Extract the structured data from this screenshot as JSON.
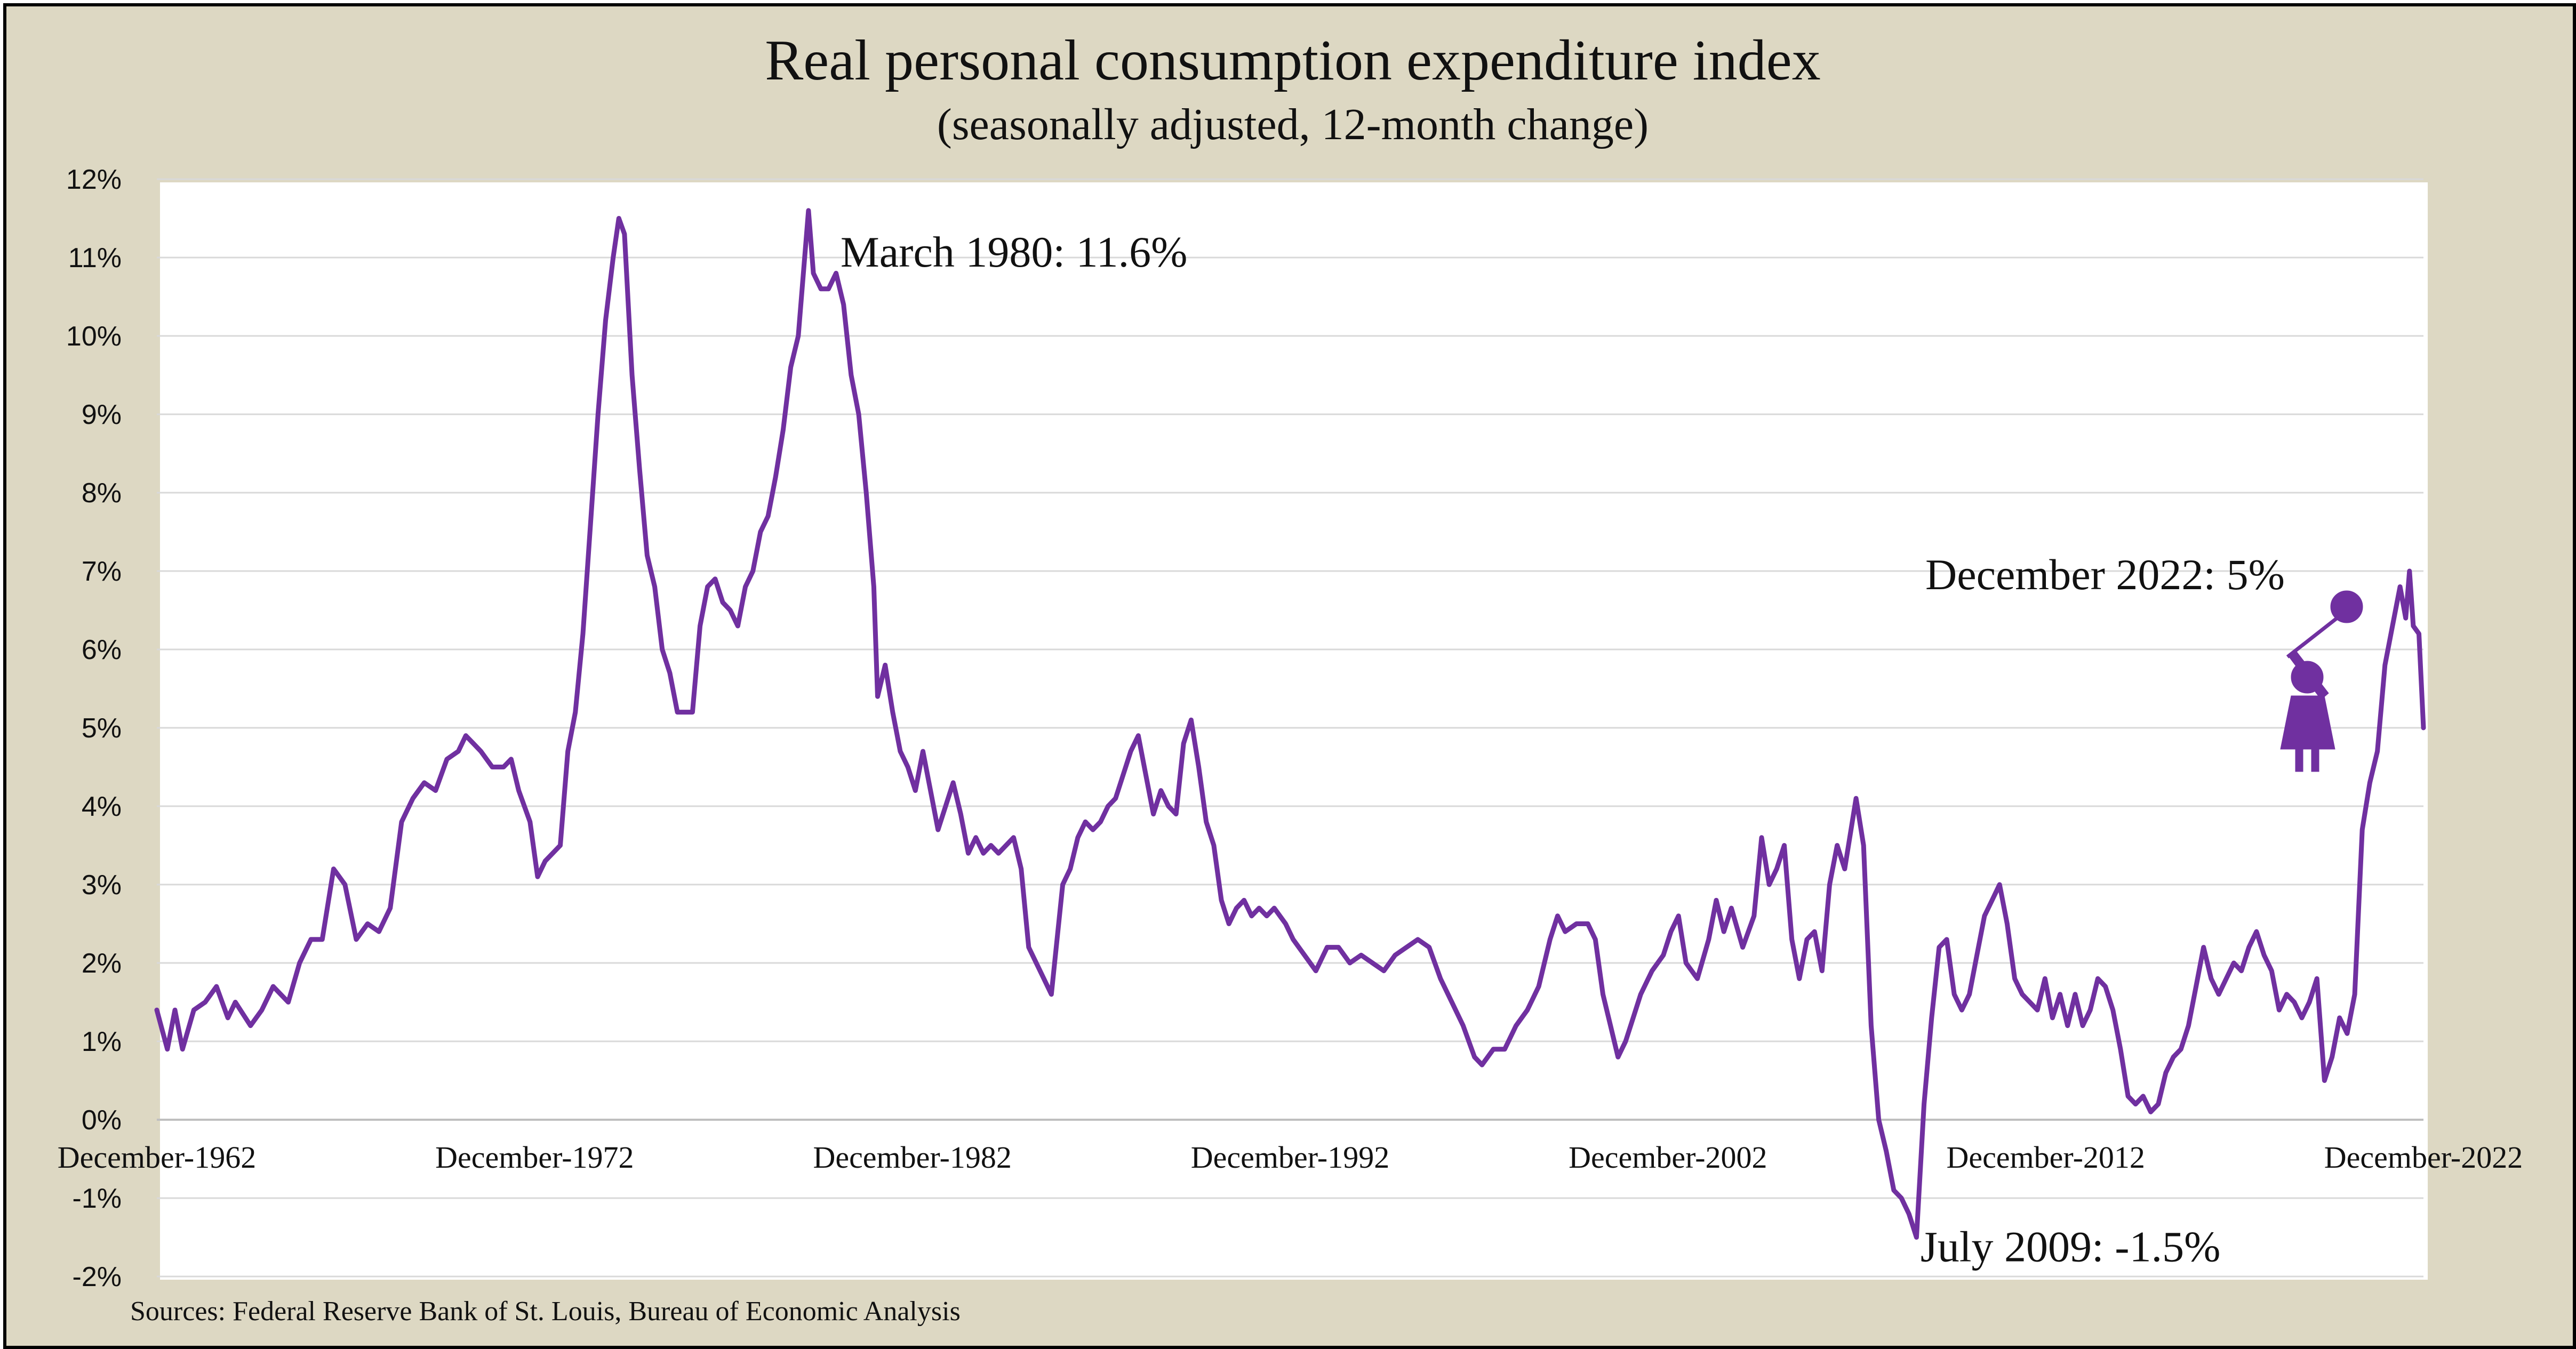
{
  "chart_data": {
    "type": "line",
    "title": "Real personal consumption expenditure index",
    "subtitle": "(seasonally adjusted, 12-month change)",
    "xlabel": "",
    "ylabel": "",
    "ylim": [
      -2,
      12
    ],
    "yticks": [
      "12%",
      "11%",
      "10%",
      "9%",
      "8%",
      "7%",
      "6%",
      "5%",
      "4%",
      "3%",
      "2%",
      "1%",
      "0%",
      "-1%",
      "-2%"
    ],
    "xticks": [
      "December-1962",
      "December-1972",
      "December-1982",
      "December-1992",
      "December-2002",
      "December-2012",
      "December-2022"
    ],
    "grid": "horizontal",
    "line_color": "#7030a0",
    "source": "Sources: Federal Reserve Bank of St. Louis, Bureau of Economic Analysis",
    "annotations": [
      {
        "text": "March 1980: 11.6%",
        "x": 1980.17,
        "y": 11.6
      },
      {
        "text": "July 2009: -1.5%",
        "x": 2009.5,
        "y": -1.5
      },
      {
        "text": "December 2022: 5%",
        "x": 2022.92,
        "y": 5.0
      }
    ],
    "icon": "girl-with-balloon-icon",
    "series": [
      {
        "points": [
          [
            1962.92,
            1.4
          ],
          [
            1963.2,
            0.9
          ],
          [
            1963.4,
            1.4
          ],
          [
            1963.6,
            0.9
          ],
          [
            1963.9,
            1.4
          ],
          [
            1964.2,
            1.5
          ],
          [
            1964.5,
            1.7
          ],
          [
            1964.8,
            1.3
          ],
          [
            1965.0,
            1.5
          ],
          [
            1965.4,
            1.2
          ],
          [
            1965.7,
            1.4
          ],
          [
            1966.0,
            1.7
          ],
          [
            1966.4,
            1.5
          ],
          [
            1966.7,
            2.0
          ],
          [
            1967.0,
            2.3
          ],
          [
            1967.3,
            2.3
          ],
          [
            1967.6,
            3.2
          ],
          [
            1967.9,
            3.0
          ],
          [
            1968.2,
            2.3
          ],
          [
            1968.5,
            2.5
          ],
          [
            1968.8,
            2.4
          ],
          [
            1969.1,
            2.7
          ],
          [
            1969.4,
            3.8
          ],
          [
            1969.7,
            4.1
          ],
          [
            1970.0,
            4.3
          ],
          [
            1970.3,
            4.2
          ],
          [
            1970.6,
            4.6
          ],
          [
            1970.9,
            4.7
          ],
          [
            1971.1,
            4.9
          ],
          [
            1971.3,
            4.8
          ],
          [
            1971.5,
            4.7
          ],
          [
            1971.8,
            4.5
          ],
          [
            1972.1,
            4.5
          ],
          [
            1972.3,
            4.6
          ],
          [
            1972.5,
            4.2
          ],
          [
            1972.8,
            3.8
          ],
          [
            1973.0,
            3.1
          ],
          [
            1973.2,
            3.3
          ],
          [
            1973.4,
            3.4
          ],
          [
            1973.6,
            3.5
          ],
          [
            1973.8,
            4.7
          ],
          [
            1974.0,
            5.2
          ],
          [
            1974.2,
            6.2
          ],
          [
            1974.4,
            7.6
          ],
          [
            1974.6,
            9.0
          ],
          [
            1974.8,
            10.2
          ],
          [
            1975.0,
            11.0
          ],
          [
            1975.15,
            11.5
          ],
          [
            1975.3,
            11.3
          ],
          [
            1975.5,
            9.5
          ],
          [
            1975.7,
            8.3
          ],
          [
            1975.9,
            7.2
          ],
          [
            1976.1,
            6.8
          ],
          [
            1976.3,
            6.0
          ],
          [
            1976.5,
            5.7
          ],
          [
            1976.7,
            5.2
          ],
          [
            1976.9,
            5.2
          ],
          [
            1977.1,
            5.2
          ],
          [
            1977.3,
            6.3
          ],
          [
            1977.5,
            6.8
          ],
          [
            1977.7,
            6.9
          ],
          [
            1977.9,
            6.6
          ],
          [
            1978.1,
            6.5
          ],
          [
            1978.3,
            6.3
          ],
          [
            1978.5,
            6.8
          ],
          [
            1978.7,
            7.0
          ],
          [
            1978.9,
            7.5
          ],
          [
            1979.1,
            7.7
          ],
          [
            1979.3,
            8.2
          ],
          [
            1979.5,
            8.8
          ],
          [
            1979.7,
            9.6
          ],
          [
            1979.9,
            10.0
          ],
          [
            1980.17,
            11.6
          ],
          [
            1980.3,
            10.8
          ],
          [
            1980.5,
            10.6
          ],
          [
            1980.7,
            10.6
          ],
          [
            1980.9,
            10.8
          ],
          [
            1981.1,
            10.4
          ],
          [
            1981.3,
            9.5
          ],
          [
            1981.5,
            9.0
          ],
          [
            1981.7,
            8.0
          ],
          [
            1981.9,
            6.8
          ],
          [
            1982.0,
            5.4
          ],
          [
            1982.2,
            5.8
          ],
          [
            1982.4,
            5.2
          ],
          [
            1982.6,
            4.7
          ],
          [
            1982.8,
            4.5
          ],
          [
            1983.0,
            4.2
          ],
          [
            1983.2,
            4.7
          ],
          [
            1983.4,
            4.2
          ],
          [
            1983.6,
            3.7
          ],
          [
            1983.8,
            4.0
          ],
          [
            1984.0,
            4.3
          ],
          [
            1984.2,
            3.9
          ],
          [
            1984.4,
            3.4
          ],
          [
            1984.6,
            3.6
          ],
          [
            1984.8,
            3.4
          ],
          [
            1985.0,
            3.5
          ],
          [
            1985.2,
            3.4
          ],
          [
            1985.4,
            3.5
          ],
          [
            1985.6,
            3.6
          ],
          [
            1985.8,
            3.2
          ],
          [
            1986.0,
            2.2
          ],
          [
            1986.2,
            2.0
          ],
          [
            1986.4,
            1.8
          ],
          [
            1986.6,
            1.6
          ],
          [
            1986.9,
            3.0
          ],
          [
            1987.1,
            3.2
          ],
          [
            1987.3,
            3.6
          ],
          [
            1987.5,
            3.8
          ],
          [
            1987.7,
            3.7
          ],
          [
            1987.9,
            3.8
          ],
          [
            1988.1,
            4.0
          ],
          [
            1988.3,
            4.1
          ],
          [
            1988.5,
            4.4
          ],
          [
            1988.7,
            4.7
          ],
          [
            1988.9,
            4.9
          ],
          [
            1989.1,
            4.4
          ],
          [
            1989.3,
            3.9
          ],
          [
            1989.5,
            4.2
          ],
          [
            1989.7,
            4.0
          ],
          [
            1989.9,
            3.9
          ],
          [
            1990.1,
            4.8
          ],
          [
            1990.3,
            5.1
          ],
          [
            1990.5,
            4.5
          ],
          [
            1990.7,
            3.8
          ],
          [
            1990.9,
            3.5
          ],
          [
            1991.1,
            2.8
          ],
          [
            1991.3,
            2.5
          ],
          [
            1991.5,
            2.7
          ],
          [
            1991.7,
            2.8
          ],
          [
            1991.9,
            2.6
          ],
          [
            1992.1,
            2.7
          ],
          [
            1992.3,
            2.6
          ],
          [
            1992.5,
            2.7
          ],
          [
            1992.8,
            2.5
          ],
          [
            1993.0,
            2.3
          ],
          [
            1993.3,
            2.1
          ],
          [
            1993.6,
            1.9
          ],
          [
            1993.9,
            2.2
          ],
          [
            1994.2,
            2.2
          ],
          [
            1994.5,
            2.0
          ],
          [
            1994.8,
            2.1
          ],
          [
            1995.1,
            2.0
          ],
          [
            1995.4,
            1.9
          ],
          [
            1995.7,
            2.1
          ],
          [
            1996.0,
            2.2
          ],
          [
            1996.3,
            2.3
          ],
          [
            1996.6,
            2.2
          ],
          [
            1996.9,
            1.8
          ],
          [
            1997.2,
            1.5
          ],
          [
            1997.5,
            1.2
          ],
          [
            1997.8,
            0.8
          ],
          [
            1998.0,
            0.7
          ],
          [
            1998.3,
            0.9
          ],
          [
            1998.6,
            0.9
          ],
          [
            1998.9,
            1.2
          ],
          [
            1999.2,
            1.4
          ],
          [
            1999.5,
            1.7
          ],
          [
            1999.8,
            2.3
          ],
          [
            2000.0,
            2.6
          ],
          [
            2000.2,
            2.4
          ],
          [
            2000.5,
            2.5
          ],
          [
            2000.8,
            2.5
          ],
          [
            2001.0,
            2.3
          ],
          [
            2001.2,
            1.6
          ],
          [
            2001.4,
            1.2
          ],
          [
            2001.6,
            0.8
          ],
          [
            2001.8,
            1.0
          ],
          [
            2002.0,
            1.3
          ],
          [
            2002.2,
            1.6
          ],
          [
            2002.5,
            1.9
          ],
          [
            2002.8,
            2.1
          ],
          [
            2003.0,
            2.4
          ],
          [
            2003.2,
            2.6
          ],
          [
            2003.4,
            2.0
          ],
          [
            2003.7,
            1.8
          ],
          [
            2004.0,
            2.3
          ],
          [
            2004.2,
            2.8
          ],
          [
            2004.4,
            2.4
          ],
          [
            2004.6,
            2.7
          ],
          [
            2004.9,
            2.2
          ],
          [
            2005.2,
            2.6
          ],
          [
            2005.4,
            3.6
          ],
          [
            2005.6,
            3.0
          ],
          [
            2005.8,
            3.2
          ],
          [
            2006.0,
            3.5
          ],
          [
            2006.2,
            2.3
          ],
          [
            2006.4,
            1.8
          ],
          [
            2006.6,
            2.3
          ],
          [
            2006.8,
            2.4
          ],
          [
            2007.0,
            1.9
          ],
          [
            2007.2,
            3.0
          ],
          [
            2007.4,
            3.5
          ],
          [
            2007.6,
            3.2
          ],
          [
            2007.9,
            4.1
          ],
          [
            2008.1,
            3.5
          ],
          [
            2008.3,
            1.2
          ],
          [
            2008.5,
            0.0
          ],
          [
            2008.7,
            -0.4
          ],
          [
            2008.9,
            -0.9
          ],
          [
            2009.1,
            -1.0
          ],
          [
            2009.3,
            -1.2
          ],
          [
            2009.5,
            -1.5
          ],
          [
            2009.7,
            0.2
          ],
          [
            2009.9,
            1.3
          ],
          [
            2010.1,
            2.2
          ],
          [
            2010.3,
            2.3
          ],
          [
            2010.5,
            1.6
          ],
          [
            2010.7,
            1.4
          ],
          [
            2010.9,
            1.6
          ],
          [
            2011.1,
            2.1
          ],
          [
            2011.3,
            2.6
          ],
          [
            2011.5,
            2.8
          ],
          [
            2011.7,
            3.0
          ],
          [
            2011.9,
            2.5
          ],
          [
            2012.1,
            1.8
          ],
          [
            2012.3,
            1.6
          ],
          [
            2012.5,
            1.5
          ],
          [
            2012.7,
            1.4
          ],
          [
            2012.9,
            1.8
          ],
          [
            2013.1,
            1.3
          ],
          [
            2013.3,
            1.6
          ],
          [
            2013.5,
            1.2
          ],
          [
            2013.7,
            1.6
          ],
          [
            2013.9,
            1.2
          ],
          [
            2014.1,
            1.4
          ],
          [
            2014.3,
            1.8
          ],
          [
            2014.5,
            1.7
          ],
          [
            2014.7,
            1.4
          ],
          [
            2014.9,
            0.9
          ],
          [
            2015.1,
            0.3
          ],
          [
            2015.3,
            0.2
          ],
          [
            2015.5,
            0.3
          ],
          [
            2015.7,
            0.1
          ],
          [
            2015.9,
            0.2
          ],
          [
            2016.1,
            0.6
          ],
          [
            2016.3,
            0.8
          ],
          [
            2016.5,
            0.9
          ],
          [
            2016.7,
            1.2
          ],
          [
            2016.9,
            1.7
          ],
          [
            2017.1,
            2.2
          ],
          [
            2017.3,
            1.8
          ],
          [
            2017.5,
            1.6
          ],
          [
            2017.7,
            1.8
          ],
          [
            2017.9,
            2.0
          ],
          [
            2018.1,
            1.9
          ],
          [
            2018.3,
            2.2
          ],
          [
            2018.5,
            2.4
          ],
          [
            2018.7,
            2.1
          ],
          [
            2018.9,
            1.9
          ],
          [
            2019.1,
            1.4
          ],
          [
            2019.3,
            1.6
          ],
          [
            2019.5,
            1.5
          ],
          [
            2019.7,
            1.3
          ],
          [
            2019.9,
            1.5
          ],
          [
            2020.1,
            1.8
          ],
          [
            2020.3,
            0.5
          ],
          [
            2020.5,
            0.8
          ],
          [
            2020.7,
            1.3
          ],
          [
            2020.9,
            1.1
          ],
          [
            2021.1,
            1.6
          ],
          [
            2021.3,
            3.7
          ],
          [
            2021.5,
            4.3
          ],
          [
            2021.7,
            4.7
          ],
          [
            2021.9,
            5.8
          ],
          [
            2022.1,
            6.3
          ],
          [
            2022.3,
            6.8
          ],
          [
            2022.45,
            6.4
          ],
          [
            2022.55,
            7.0
          ],
          [
            2022.65,
            6.3
          ],
          [
            2022.8,
            6.2
          ],
          [
            2022.92,
            5.0
          ]
        ]
      }
    ]
  }
}
